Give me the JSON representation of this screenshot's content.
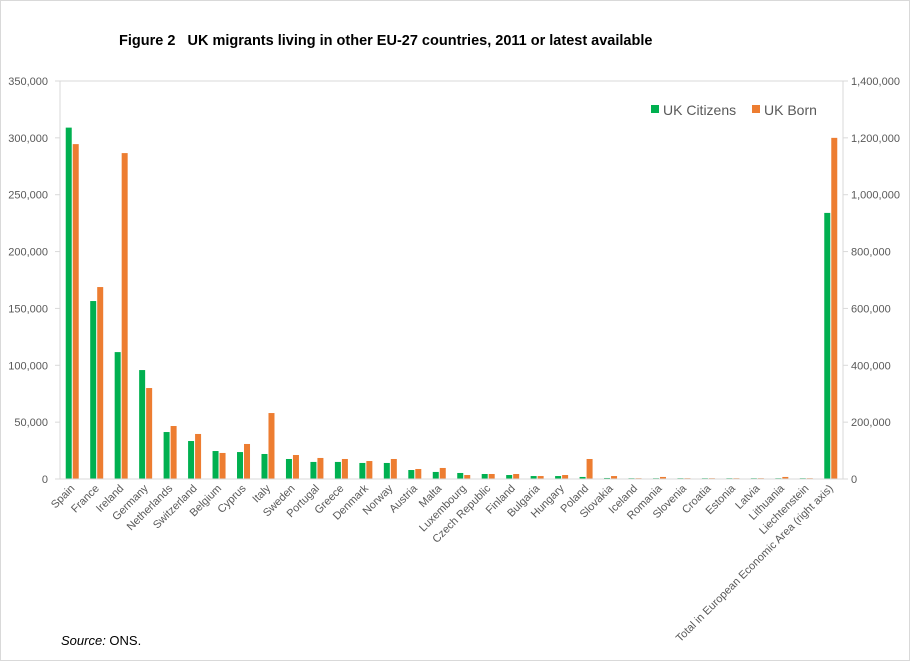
{
  "chart_data": {
    "type": "bar",
    "title": "Figure 2   UK migrants living in other EU-27 countries, 2011 or latest available",
    "categories": [
      "Spain",
      "France",
      "Ireland",
      "Germany",
      "Netherlands",
      "Switzerland",
      "Belgium",
      "Cyprus",
      "Italy",
      "Sweden",
      "Portugal",
      "Greece",
      "Denmark",
      "Norway",
      "Austria",
      "Malta",
      "Luxembourg",
      "Czech Republic",
      "Finland",
      "Bulgaria",
      "Hungary",
      "Poland",
      "Slovakia",
      "Iceland",
      "Romania",
      "Slovenia",
      "Croatia",
      "Estonia",
      "Latvia",
      "Lithuania",
      "Liechtenstein",
      "Total in European Economic Area (right axis)"
    ],
    "series": [
      {
        "name": "UK Citizens",
        "color": "#00b050",
        "values": [
          309000,
          156500,
          111600,
          95800,
          41300,
          33400,
          24600,
          23700,
          22000,
          17600,
          15000,
          15000,
          14100,
          14100,
          7900,
          6200,
          5300,
          4400,
          3500,
          2600,
          2600,
          1800,
          900,
          700,
          700,
          700,
          700,
          700,
          700,
          700,
          700,
          936000
        ]
      },
      {
        "name": "UK Born",
        "color": "#ed7d31",
        "values": [
          294500,
          168800,
          286600,
          80000,
          46600,
          39600,
          22900,
          30800,
          58000,
          21100,
          18500,
          17600,
          15800,
          17600,
          8800,
          9700,
          3500,
          4400,
          4400,
          2600,
          3500,
          17600,
          2600,
          700,
          1800,
          700,
          700,
          700,
          700,
          1800,
          700,
          1200000
        ]
      }
    ],
    "secondary_axis_category": "Total in European Economic Area (right axis)",
    "ylim": [
      0,
      350000
    ],
    "yticks": [
      "0",
      "50,000",
      "100,000",
      "150,000",
      "200,000",
      "250,000",
      "300,000",
      "350,000"
    ],
    "y2lim": [
      0,
      1400000
    ],
    "y2ticks": [
      "0",
      "200,000",
      "400,000",
      "600,000",
      "800,000",
      "1,000,000",
      "1,200,000",
      "1,400,000"
    ],
    "legend": "top-right",
    "grid": false
  },
  "source": {
    "label": "Source:",
    "text": " ONS."
  }
}
